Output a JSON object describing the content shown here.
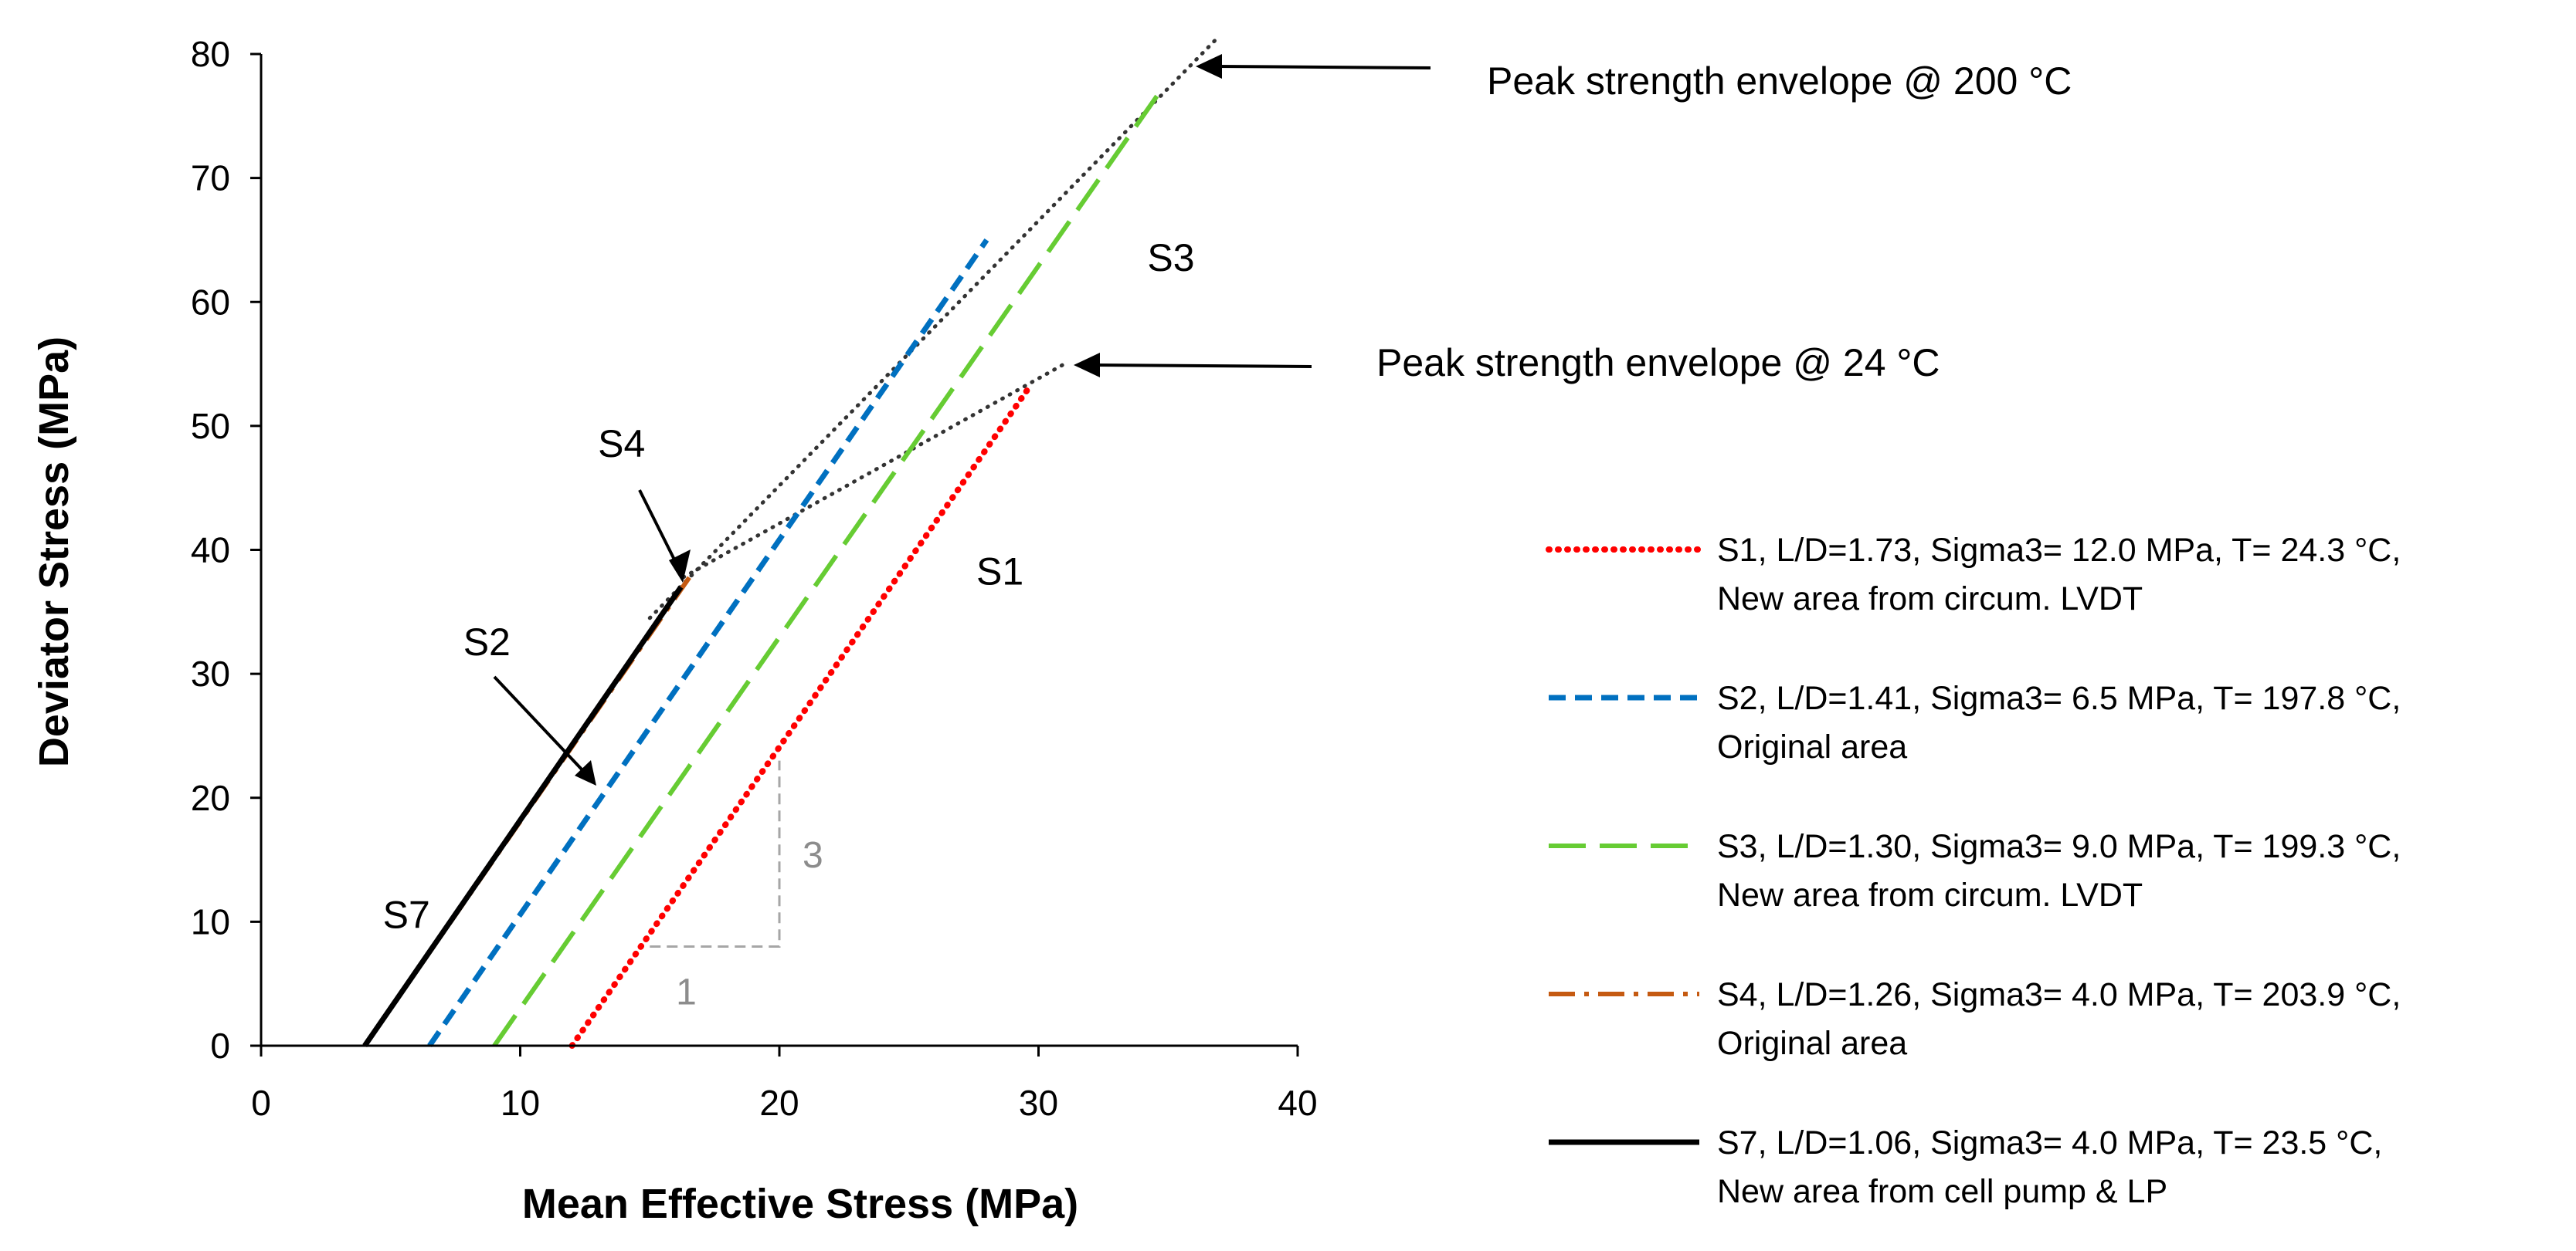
{
  "chart_data": {
    "type": "line",
    "title": "",
    "xlabel": "Mean Effective Stress (MPa)",
    "ylabel": "Deviator Stress (MPa)",
    "xlim": [
      0,
      40
    ],
    "ylim": [
      0,
      80
    ],
    "xticks": [
      "0",
      "10",
      "20",
      "30",
      "40"
    ],
    "yticks": [
      "0",
      "10",
      "20",
      "30",
      "40",
      "50",
      "60",
      "70",
      "80"
    ],
    "grid": false,
    "legend_position": "right",
    "series": [
      {
        "id": "s1",
        "name": "S1, L/D=1.73, Sigma3= 12.0 MPa, T= 24.3 °C,",
        "name_line2": "New area from circum. LVDT",
        "color": "#ff0000",
        "style": "dotted",
        "x": [
          12.0,
          29.6
        ],
        "y": [
          0,
          53
        ]
      },
      {
        "id": "s2",
        "name": "S2, L/D=1.41, Sigma3= 6.5 MPa, T= 197.8 °C,",
        "name_line2": "Original area",
        "color": "#0070c0",
        "style": "dashed",
        "x": [
          6.5,
          28.0
        ],
        "y": [
          0,
          65
        ]
      },
      {
        "id": "s3",
        "name": "S3, L/D=1.30, Sigma3= 9.0 MPa, T= 199.3 °C,",
        "name_line2": "New area from circum. LVDT",
        "color": "#66cc33",
        "style": "longdash",
        "x": [
          9.0,
          34.7
        ],
        "y": [
          0,
          77
        ]
      },
      {
        "id": "s4",
        "name": "S4, L/D=1.26, Sigma3= 4.0 MPa, T= 203.9 °C,",
        "name_line2": "Original area",
        "color": "#c55a11",
        "style": "dashdot",
        "x": [
          4.0,
          16.6
        ],
        "y": [
          0,
          38
        ]
      },
      {
        "id": "s7",
        "name": "S7, L/D=1.06, Sigma3= 4.0 MPa, T= 23.5 °C,",
        "name_line2": "New area from cell pump & LP",
        "color": "#000000",
        "style": "solid",
        "x": [
          4.0,
          16.2
        ],
        "y": [
          0,
          37
        ]
      }
    ],
    "envelopes": [
      {
        "id": "env200",
        "label": "Peak strength envelope @ 200 °C",
        "x": [
          15.0,
          37.0
        ],
        "y": [
          34.5,
          81.5
        ]
      },
      {
        "id": "env24",
        "label": "Peak strength envelope @ 24 °C",
        "x": [
          16.3,
          31.0
        ],
        "y": [
          37.8,
          55.0
        ]
      }
    ],
    "series_labels": [
      {
        "text": "S1",
        "x": 27.6,
        "y": 37.2
      },
      {
        "text": "S2",
        "x": 7.8,
        "y": 31.5
      },
      {
        "text": "S3",
        "x": 34.2,
        "y": 62.5
      },
      {
        "text": "S4",
        "x": 13.0,
        "y": 47.5
      },
      {
        "text": "S7",
        "x": 4.7,
        "y": 9.5
      }
    ],
    "slope_triangle": {
      "x_start": 15.0,
      "x_end": 20.0,
      "y_start": 8.0,
      "y_end": 23.0,
      "run_label": "1",
      "rise_label": "3"
    }
  }
}
